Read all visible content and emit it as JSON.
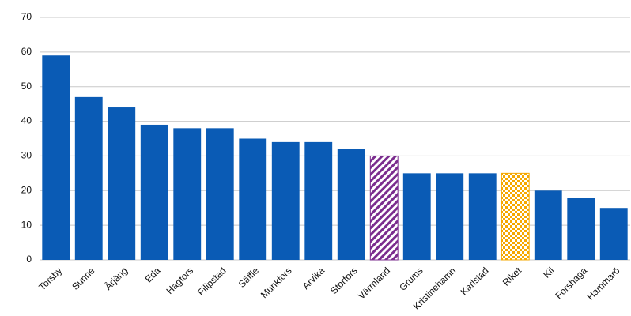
{
  "chart_data": {
    "type": "bar",
    "categories": [
      "Torsby",
      "Sunne",
      "Årjäng",
      "Eda",
      "Hagfors",
      "Filipstad",
      "Säffle",
      "Munkfors",
      "Arvika",
      "Storfors",
      "Värmland",
      "Grums",
      "Kristinehamn",
      "Karlstad",
      "Riket",
      "Kil",
      "Forshaga",
      "Hammarö"
    ],
    "values": [
      59,
      47,
      44,
      39,
      38,
      38,
      35,
      34,
      34,
      32,
      30,
      25,
      25,
      25,
      25,
      20,
      18,
      15
    ],
    "colors": [
      "#0a5bb5",
      "#0a5bb5",
      "#0a5bb5",
      "#0a5bb5",
      "#0a5bb5",
      "#0a5bb5",
      "#0a5bb5",
      "#0a5bb5",
      "#0a5bb5",
      "#0a5bb5",
      "#7b2d8e",
      "#0a5bb5",
      "#0a5bb5",
      "#0a5bb5",
      "#f5a800",
      "#0a5bb5",
      "#0a5bb5",
      "#0a5bb5"
    ],
    "patterns": [
      "solid",
      "solid",
      "solid",
      "solid",
      "solid",
      "solid",
      "solid",
      "solid",
      "solid",
      "solid",
      "diagonal",
      "solid",
      "solid",
      "solid",
      "checker",
      "solid",
      "solid",
      "solid"
    ],
    "ylim": [
      0,
      70
    ],
    "yticks": [
      0,
      10,
      20,
      30,
      40,
      50,
      60,
      70
    ],
    "grid": true
  }
}
